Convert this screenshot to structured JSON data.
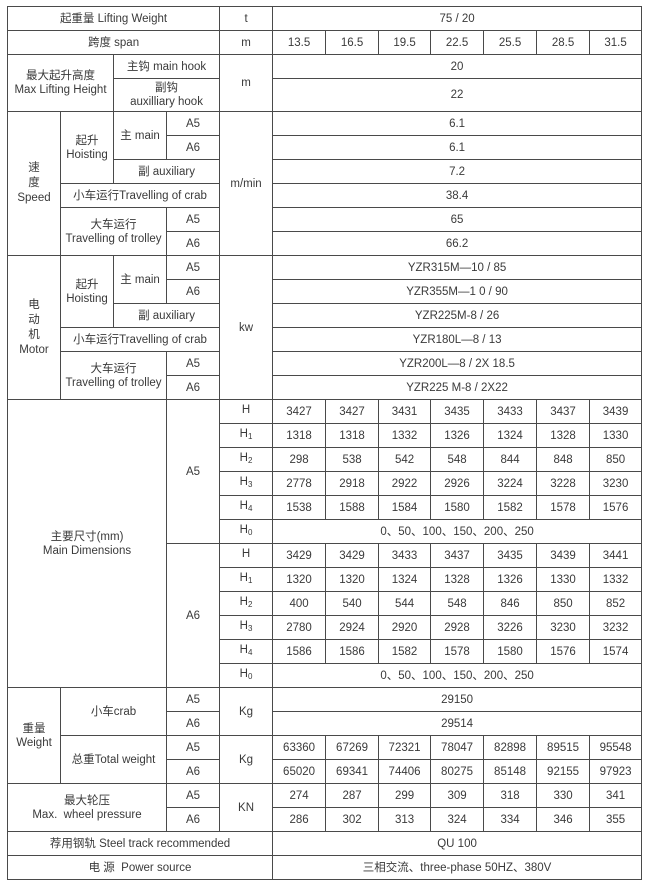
{
  "lifting_weight": {
    "label": "起重量 Lifting Weight",
    "unit": "t",
    "value": "75 / 20"
  },
  "span": {
    "label": "跨度 span",
    "unit": "m",
    "values": [
      "13.5",
      "16.5",
      "19.5",
      "22.5",
      "25.5",
      "28.5",
      "31.5"
    ]
  },
  "max_lifting_height": {
    "label_cn": "最大起升高度",
    "label_en": "Max Lifting Height",
    "unit": "m",
    "main_hook_label": "主钩 main hook",
    "main_hook_value": "20",
    "aux_hook_label_cn": "副钩",
    "aux_hook_label_en": "auxilliary hook",
    "aux_hook_value": "22"
  },
  "speed": {
    "label_cn": "速\n度",
    "label_en": "Speed",
    "unit": "m/min",
    "hoisting_cn": "起升",
    "hoisting_en": "Hoisting",
    "main": "主 main",
    "aux": "副 auxiliary",
    "crab": "小车运行Travelling of crab",
    "trolley_cn": "大车运行",
    "trolley_en": "Travelling of trolley",
    "a5": "A5",
    "a6": "A6",
    "main_a5": "6.1",
    "main_a6": "6.1",
    "aux_value": "7.2",
    "crab_value": "38.4",
    "trolley_a5": "65",
    "trolley_a6": "66.2"
  },
  "motor": {
    "label_cn": "电\n动\n机",
    "label_en": "Motor",
    "unit": "kw",
    "hoisting_cn": "起升",
    "hoisting_en": "Hoisting",
    "main": "主 main",
    "aux": "副 auxiliary",
    "crab": "小车运行Travelling of crab",
    "trolley_cn": "大车运行",
    "trolley_en": "Travelling of trolley",
    "a5": "A5",
    "a6": "A6",
    "main_a5": "YZR315M—10 / 85",
    "main_a6": "YZR355M—1 0 / 90",
    "aux_value": "YZR225M-8 / 26",
    "crab_value": "YZR180L—8 / 13",
    "trolley_a5": "YZR200L—8 / 2X 18.5",
    "trolley_a6": "YZR225 M-8 / 2X22"
  },
  "dimensions": {
    "label_cn": "主要尺寸(mm)",
    "label_en": "Main Dimensions",
    "groups": [
      {
        "duty": "A5",
        "rows": [
          {
            "sym": "H",
            "sub": "",
            "values": [
              "3427",
              "3427",
              "3431",
              "3435",
              "3433",
              "3437",
              "3439"
            ]
          },
          {
            "sym": "H",
            "sub": "1",
            "values": [
              "1318",
              "1318",
              "1332",
              "1326",
              "1324",
              "1328",
              "1330"
            ]
          },
          {
            "sym": "H",
            "sub": "2",
            "values": [
              "298",
              "538",
              "542",
              "548",
              "844",
              "848",
              "850"
            ]
          },
          {
            "sym": "H",
            "sub": "3",
            "values": [
              "2778",
              "2918",
              "2922",
              "2926",
              "3224",
              "3228",
              "3230"
            ]
          },
          {
            "sym": "H",
            "sub": "4",
            "values": [
              "1538",
              "1588",
              "1584",
              "1580",
              "1582",
              "1578",
              "1576"
            ]
          },
          {
            "sym": "H",
            "sub": "0",
            "value": "0、50、100、150、200、250"
          }
        ]
      },
      {
        "duty": "A6",
        "rows": [
          {
            "sym": "H",
            "sub": "",
            "values": [
              "3429",
              "3429",
              "3433",
              "3437",
              "3435",
              "3439",
              "3441"
            ]
          },
          {
            "sym": "H",
            "sub": "1",
            "values": [
              "1320",
              "1320",
              "1324",
              "1328",
              "1326",
              "1330",
              "1332"
            ]
          },
          {
            "sym": "H",
            "sub": "2",
            "values": [
              "400",
              "540",
              "544",
              "548",
              "846",
              "850",
              "852"
            ]
          },
          {
            "sym": "H",
            "sub": "3",
            "values": [
              "2780",
              "2924",
              "2920",
              "2928",
              "3226",
              "3230",
              "3232"
            ]
          },
          {
            "sym": "H",
            "sub": "4",
            "values": [
              "1586",
              "1586",
              "1582",
              "1578",
              "1580",
              "1576",
              "1574"
            ]
          },
          {
            "sym": "H",
            "sub": "0",
            "value": "0、50、100、150、200、250"
          }
        ]
      }
    ]
  },
  "weight": {
    "label_cn": "重量",
    "label_en": "Weight",
    "a5": "A5",
    "a6": "A6",
    "crab_label": "小车crab",
    "crab_unit": "Kg",
    "crab_a5": "29150",
    "crab_a6": "29514",
    "total_label": "总重Total weight",
    "total_unit": "Kg",
    "total_a5": [
      "63360",
      "67269",
      "72321",
      "78047",
      "82898",
      "89515",
      "95548"
    ],
    "total_a6": [
      "65020",
      "69341",
      "74406",
      "80275",
      "85148",
      "92155",
      "97923"
    ]
  },
  "wheel_pressure": {
    "label_cn": "最大轮压",
    "label_en": "Max.  wheel pressure",
    "unit": "KN",
    "a5": "A5",
    "a6": "A6",
    "values_a5": [
      "274",
      "287",
      "299",
      "309",
      "318",
      "330",
      "341"
    ],
    "values_a6": [
      "286",
      "302",
      "313",
      "324",
      "334",
      "346",
      "355"
    ]
  },
  "steel_track": {
    "label": "荐用钢轨 Steel track recommended",
    "value": "QU 100"
  },
  "power_source": {
    "label": "电 源  Power source",
    "value": "三相交流、three-phase 50HZ、380V"
  }
}
